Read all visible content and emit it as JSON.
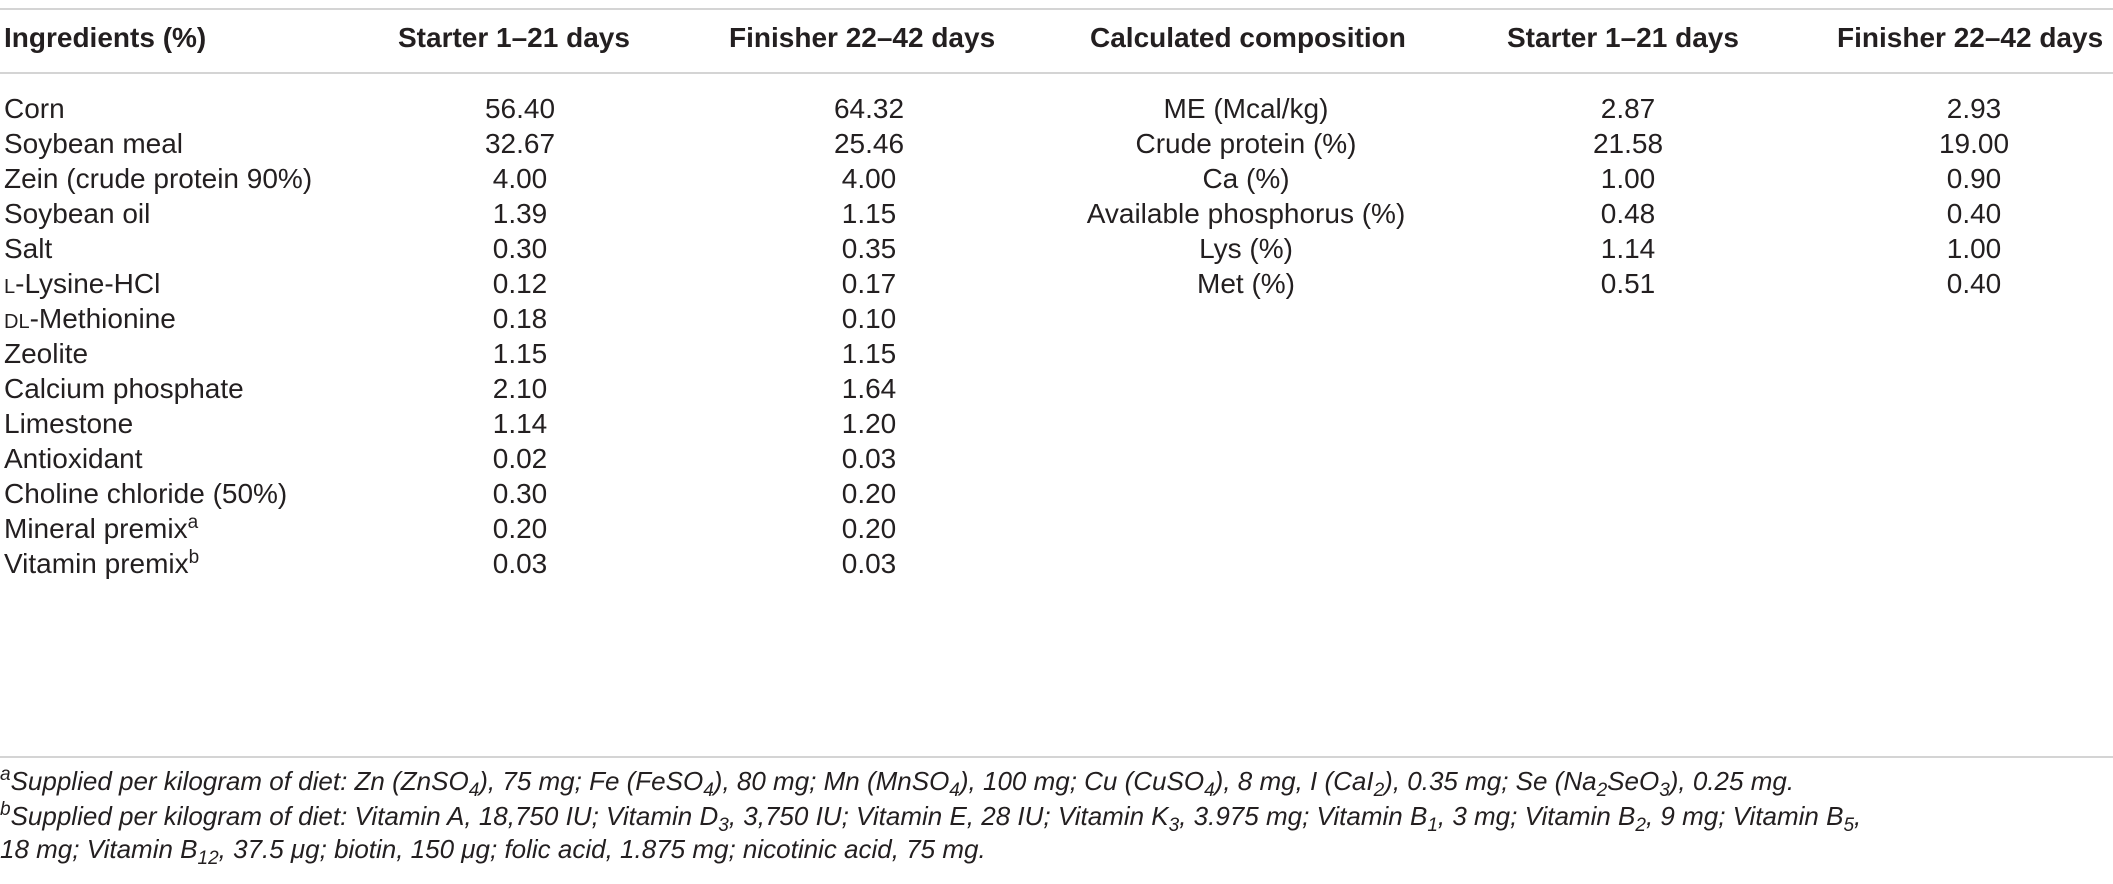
{
  "headers": {
    "ingredients": "Ingredients (%)",
    "starter": "Starter 1–21 days",
    "finisher": "Finisher 22–42 days",
    "calc": "Calculated composition",
    "starter2": "Starter 1–21 days",
    "finisher2": "Finisher 22–42 days"
  },
  "ingredients": [
    {
      "name": "Corn",
      "starter": "56.40",
      "finisher": "64.32"
    },
    {
      "name": "Soybean meal",
      "starter": "32.67",
      "finisher": "25.46"
    },
    {
      "name": "Zein (crude protein 90%)",
      "starter": "4.00",
      "finisher": "4.00"
    },
    {
      "name": "Soybean oil",
      "starter": "1.39",
      "finisher": "1.15"
    },
    {
      "name": "Salt",
      "starter": "0.30",
      "finisher": "0.35"
    },
    {
      "name_prefix": "L",
      "name": "-Lysine-HCl",
      "starter": "0.12",
      "finisher": "0.17"
    },
    {
      "name_prefix": "DL",
      "name": "-Methionine",
      "starter": "0.18",
      "finisher": "0.10"
    },
    {
      "name": "Zeolite",
      "starter": "1.15",
      "finisher": "1.15"
    },
    {
      "name": "Calcium phosphate",
      "starter": "2.10",
      "finisher": "1.64"
    },
    {
      "name": "Limestone",
      "starter": "1.14",
      "finisher": "1.20"
    },
    {
      "name": "Antioxidant",
      "starter": "0.02",
      "finisher": "0.03"
    },
    {
      "name": "Choline chloride (50%)",
      "starter": "0.30",
      "finisher": "0.20"
    },
    {
      "name": "Mineral premix",
      "sup": "a",
      "starter": "0.20",
      "finisher": "0.20"
    },
    {
      "name": "Vitamin premix",
      "sup": "b",
      "starter": "0.03",
      "finisher": "0.03"
    }
  ],
  "composition": [
    {
      "name": "ME (Mcal/kg)",
      "starter": "2.87",
      "finisher": "2.93"
    },
    {
      "name": "Crude protein (%)",
      "starter": "21.58",
      "finisher": "19.00"
    },
    {
      "name": "Ca (%)",
      "starter": "1.00",
      "finisher": "0.90"
    },
    {
      "name": "Available phosphorus (%)",
      "starter": "0.48",
      "finisher": "0.40"
    },
    {
      "name": "Lys (%)",
      "starter": "1.14",
      "finisher": "1.00"
    },
    {
      "name": "Met (%)",
      "starter": "0.51",
      "finisher": "0.40"
    }
  ],
  "footnotes": {
    "a": {
      "mark": "a",
      "p1": "Supplied per kilogram of diet: Zn (ZnSO",
      "s1": "4",
      "p2": "), 75 mg; Fe (FeSO",
      "s2": "4",
      "p3": "), 80 mg; Mn (MnSO",
      "s3": "4",
      "p4": "), 100 mg; Cu (CuSO",
      "s4": "4",
      "p5": "), 8 mg, I (CaI",
      "s5": "2",
      "p6": "), 0.35 mg; Se (Na",
      "s6": "2",
      "p7": "SeO",
      "s7": "3",
      "p8": "), 0.25 mg."
    },
    "b": {
      "mark": "b",
      "p1": "Supplied per kilogram of diet: Vitamin A, 18,750 IU; Vitamin D",
      "s1": "3",
      "p2": ", 3,750 IU; Vitamin E, 28 IU; Vitamin K",
      "s2": "3",
      "p3": ", 3.975 mg; Vitamin B",
      "s3": "1",
      "p4": ", 3 mg; Vitamin B",
      "s4": "2",
      "p5": ", 9 mg; Vitamin B",
      "s5": "5",
      "p6": ",",
      "p7": "18 mg; Vitamin B",
      "s7": "12",
      "p8": ", 37.5 μg; biotin, 150 μg; folic acid, 1.875 mg; nicotinic acid, 75 mg."
    }
  }
}
